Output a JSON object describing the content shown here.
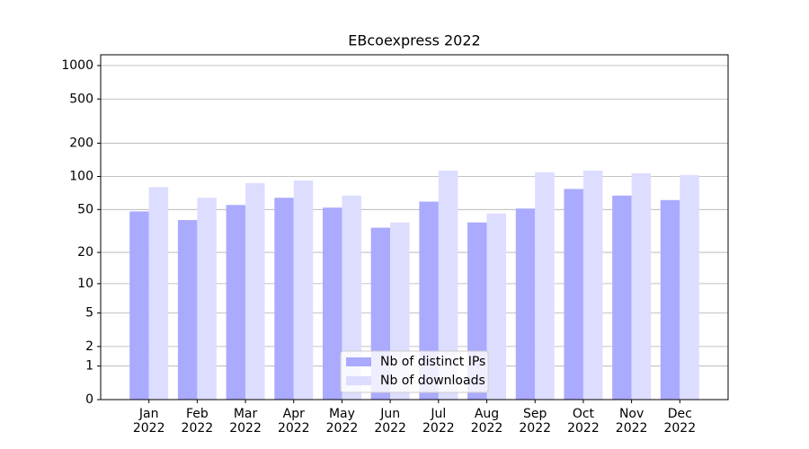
{
  "chart_data": {
    "type": "bar",
    "title": "EBcoexpress 2022",
    "categories": [
      "Jan\n2022",
      "Feb\n2022",
      "Mar\n2022",
      "Apr\n2022",
      "May\n2022",
      "Jun\n2022",
      "Jul\n2022",
      "Aug\n2022",
      "Sep\n2022",
      "Oct\n2022",
      "Nov\n2022",
      "Dec\n2022"
    ],
    "series": [
      {
        "name": "Nb of distinct IPs",
        "color": "#aaaaff",
        "values": [
          48,
          40,
          55,
          64,
          52,
          34,
          59,
          38,
          51,
          77,
          67,
          61
        ]
      },
      {
        "name": "Nb of downloads",
        "color": "#ddddff",
        "values": [
          80,
          64,
          87,
          92,
          67,
          38,
          113,
          46,
          109,
          113,
          107,
          103
        ]
      }
    ],
    "yscale": "log1p",
    "ylim": [
      0,
      1250
    ],
    "yticks": [
      0,
      1,
      2,
      5,
      10,
      20,
      50,
      100,
      200,
      500,
      1000
    ],
    "grid": true,
    "legend": "lower center"
  }
}
